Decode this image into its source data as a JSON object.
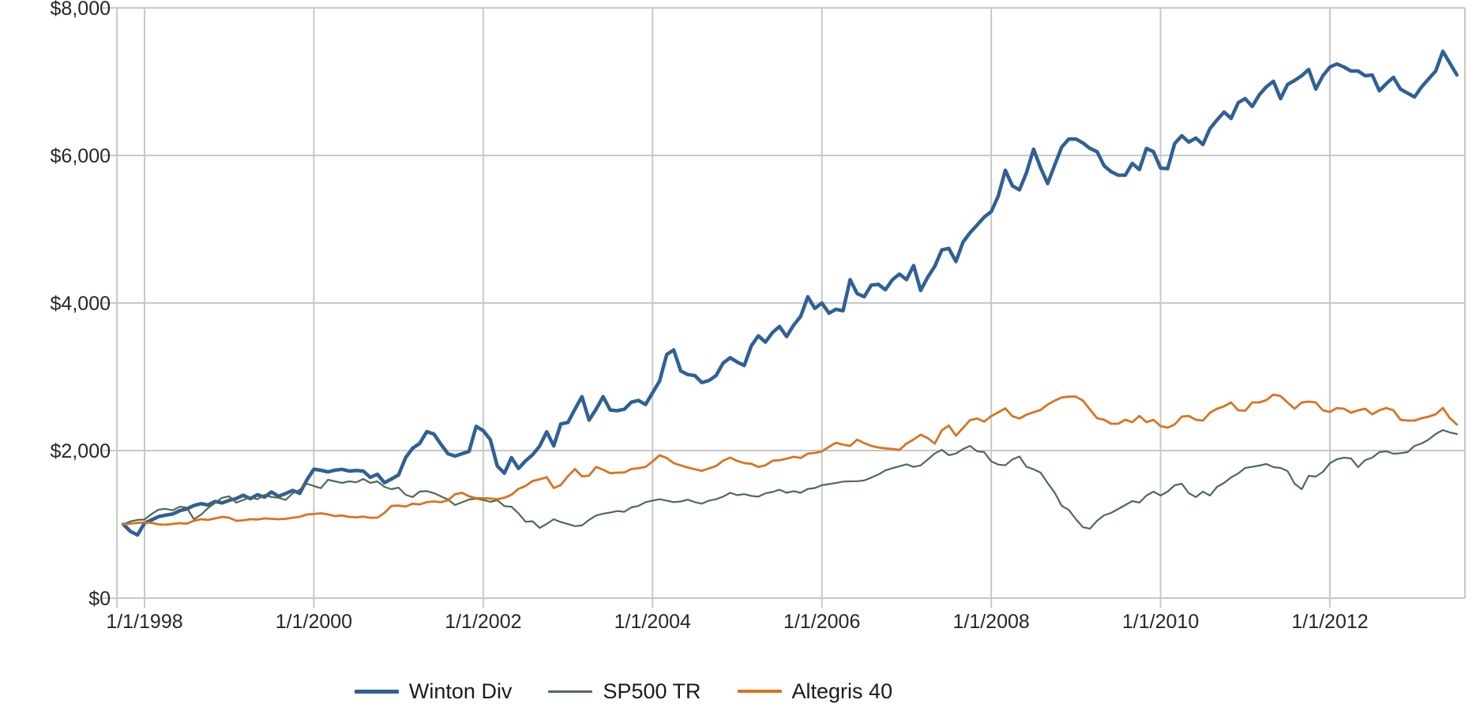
{
  "chart_data": {
    "type": "line",
    "title": "",
    "xlabel": "",
    "ylabel": "",
    "ylim": [
      0,
      8000
    ],
    "y_tick_labels": [
      "$0",
      "$2,000",
      "$4,000",
      "$6,000",
      "$8,000"
    ],
    "y_tick_values": [
      0,
      2000,
      4000,
      6000,
      8000
    ],
    "x_tick_labels": [
      "1/1/1998",
      "1/1/2000",
      "1/1/2002",
      "1/1/2004",
      "1/1/2006",
      "1/1/2008",
      "1/1/2010",
      "1/1/2012"
    ],
    "x_range": [
      "1997-10",
      "2013-07"
    ],
    "frequency": "monthly",
    "grid": true,
    "legend_position": "bottom-center",
    "colors": {
      "winton": "#2f6096",
      "sp500": "#4e6b51",
      "altegris": "#d9731e",
      "gridline": "#c8c8c8",
      "axis_text": "#262626"
    },
    "series": [
      {
        "id": "winton",
        "name": "Winton Div",
        "color": "#2f6096",
        "stroke_width": 4.5,
        "values": [
          1000,
          905,
          856,
          1016,
          1060,
          1105,
          1125,
          1140,
          1185,
          1210,
          1255,
          1280,
          1262,
          1310,
          1290,
          1325,
          1350,
          1395,
          1348,
          1401,
          1369,
          1438,
          1380,
          1418,
          1460,
          1420,
          1600,
          1748,
          1733,
          1711,
          1735,
          1745,
          1722,
          1730,
          1722,
          1636,
          1679,
          1565,
          1615,
          1668,
          1904,
          2032,
          2096,
          2257,
          2225,
          2086,
          1957,
          1925,
          1957,
          1989,
          2328,
          2270,
          2150,
          1790,
          1693,
          1905,
          1757,
          1860,
          1943,
          2060,
          2254,
          2063,
          2360,
          2381,
          2560,
          2730,
          2413,
          2560,
          2730,
          2550,
          2540,
          2560,
          2656,
          2680,
          2624,
          2783,
          2942,
          3300,
          3365,
          3079,
          3030,
          3016,
          2921,
          2950,
          3016,
          3185,
          3259,
          3200,
          3153,
          3420,
          3555,
          3470,
          3600,
          3682,
          3545,
          3700,
          3820,
          4085,
          3926,
          4000,
          3862,
          3915,
          3894,
          4317,
          4127,
          4085,
          4243,
          4254,
          4180,
          4317,
          4391,
          4317,
          4508,
          4170,
          4350,
          4497,
          4720,
          4740,
          4561,
          4825,
          4952,
          5058,
          5164,
          5238,
          5450,
          5799,
          5587,
          5534,
          5767,
          6085,
          5831,
          5619,
          5873,
          6116,
          6222,
          6222,
          6169,
          6095,
          6050,
          5860,
          5780,
          5733,
          5733,
          5893,
          5808,
          6096,
          6050,
          5829,
          5820,
          6160,
          6267,
          6181,
          6235,
          6149,
          6363,
          6481,
          6588,
          6502,
          6716,
          6770,
          6663,
          6823,
          6930,
          7005,
          6770,
          6963,
          7016,
          7080,
          7166,
          6899,
          7080,
          7198,
          7241,
          7198,
          7144,
          7144,
          7080,
          7091,
          6877,
          6973,
          7059,
          6899,
          6845,
          6792,
          6931,
          7038,
          7144,
          7412,
          7251,
          7091
        ]
      },
      {
        "id": "sp500",
        "name": "SP500 TR",
        "color": "#4e6b51",
        "stroke_width": 2.2,
        "values": [
          1000,
          1040,
          1060,
          1065,
          1140,
          1200,
          1210,
          1190,
          1240,
          1225,
          1070,
          1130,
          1220,
          1290,
          1360,
          1380,
          1294,
          1330,
          1369,
          1340,
          1400,
          1370,
          1360,
          1330,
          1420,
          1470,
          1551,
          1520,
          1490,
          1604,
          1583,
          1561,
          1583,
          1570,
          1615,
          1561,
          1583,
          1508,
          1476,
          1497,
          1401,
          1369,
          1444,
          1450,
          1423,
          1380,
          1337,
          1262,
          1300,
          1337,
          1348,
          1330,
          1305,
          1327,
          1247,
          1238,
          1149,
          1035,
          1042,
          951,
          1005,
          1070,
          1031,
          1004,
          975,
          985,
          1060,
          1120,
          1143,
          1160,
          1180,
          1170,
          1230,
          1249,
          1301,
          1322,
          1340,
          1322,
          1301,
          1310,
          1335,
          1301,
          1280,
          1322,
          1340,
          1375,
          1428,
          1396,
          1410,
          1385,
          1375,
          1420,
          1439,
          1470,
          1428,
          1450,
          1428,
          1480,
          1492,
          1530,
          1545,
          1560,
          1580,
          1583,
          1585,
          1595,
          1633,
          1675,
          1730,
          1762,
          1787,
          1814,
          1779,
          1799,
          1878,
          1960,
          2010,
          1937,
          1960,
          2020,
          2063,
          1989,
          1980,
          1852,
          1810,
          1800,
          1880,
          1920,
          1780,
          1746,
          1700,
          1560,
          1428,
          1249,
          1196,
          1070,
          960,
          941,
          1048,
          1123,
          1155,
          1209,
          1262,
          1316,
          1294,
          1390,
          1444,
          1390,
          1444,
          1529,
          1551,
          1423,
          1370,
          1444,
          1390,
          1508,
          1561,
          1636,
          1690,
          1765,
          1780,
          1797,
          1818,
          1775,
          1765,
          1722,
          1551,
          1476,
          1658,
          1647,
          1711,
          1829,
          1882,
          1904,
          1893,
          1775,
          1872,
          1904,
          1979,
          1990,
          1957,
          1965,
          1979,
          2064,
          2096,
          2150,
          2225,
          2278,
          2246,
          2225
        ]
      },
      {
        "id": "altegris",
        "name": "Altegris 40",
        "color": "#d9731e",
        "stroke_width": 2.8,
        "values": [
          1000,
          1010,
          1020,
          1025,
          1020,
          1000,
          995,
          1005,
          1016,
          1010,
          1048,
          1070,
          1060,
          1080,
          1102,
          1090,
          1048,
          1055,
          1070,
          1065,
          1080,
          1075,
          1070,
          1075,
          1090,
          1102,
          1134,
          1140,
          1150,
          1135,
          1111,
          1120,
          1100,
          1095,
          1105,
          1090,
          1090,
          1155,
          1249,
          1255,
          1241,
          1280,
          1270,
          1301,
          1310,
          1301,
          1326,
          1407,
          1428,
          1380,
          1354,
          1354,
          1350,
          1340,
          1360,
          1400,
          1481,
          1520,
          1587,
          1610,
          1640,
          1492,
          1534,
          1651,
          1749,
          1651,
          1660,
          1778,
          1740,
          1693,
          1700,
          1704,
          1750,
          1760,
          1778,
          1852,
          1937,
          1900,
          1830,
          1799,
          1770,
          1746,
          1725,
          1757,
          1790,
          1862,
          1905,
          1860,
          1831,
          1820,
          1778,
          1800,
          1862,
          1870,
          1890,
          1915,
          1900,
          1958,
          1968,
          1989,
          2050,
          2106,
          2080,
          2063,
          2148,
          2100,
          2063,
          2042,
          2030,
          2021,
          2010,
          2095,
          2150,
          2215,
          2169,
          2095,
          2275,
          2339,
          2201,
          2307,
          2413,
          2434,
          2392,
          2466,
          2519,
          2571,
          2466,
          2434,
          2487,
          2520,
          2551,
          2624,
          2677,
          2720,
          2730,
          2730,
          2677,
          2556,
          2438,
          2417,
          2364,
          2364,
          2417,
          2385,
          2470,
          2385,
          2417,
          2332,
          2310,
          2353,
          2460,
          2470,
          2417,
          2406,
          2513,
          2567,
          2600,
          2652,
          2545,
          2540,
          2652,
          2652,
          2684,
          2759,
          2738,
          2652,
          2567,
          2652,
          2663,
          2652,
          2545,
          2524,
          2577,
          2567,
          2513,
          2545,
          2567,
          2492,
          2545,
          2577,
          2545,
          2417,
          2406,
          2406,
          2438,
          2460,
          2492,
          2577,
          2438,
          2353
        ]
      }
    ]
  },
  "legend": {
    "items": [
      {
        "label": "Winton Div",
        "color": "#2f6096",
        "thickness": 5
      },
      {
        "label": "SP500 TR",
        "color": "#4e6b51",
        "thickness": 3
      },
      {
        "label": "Altegris 40",
        "color": "#d9731e",
        "thickness": 3.5
      }
    ]
  }
}
